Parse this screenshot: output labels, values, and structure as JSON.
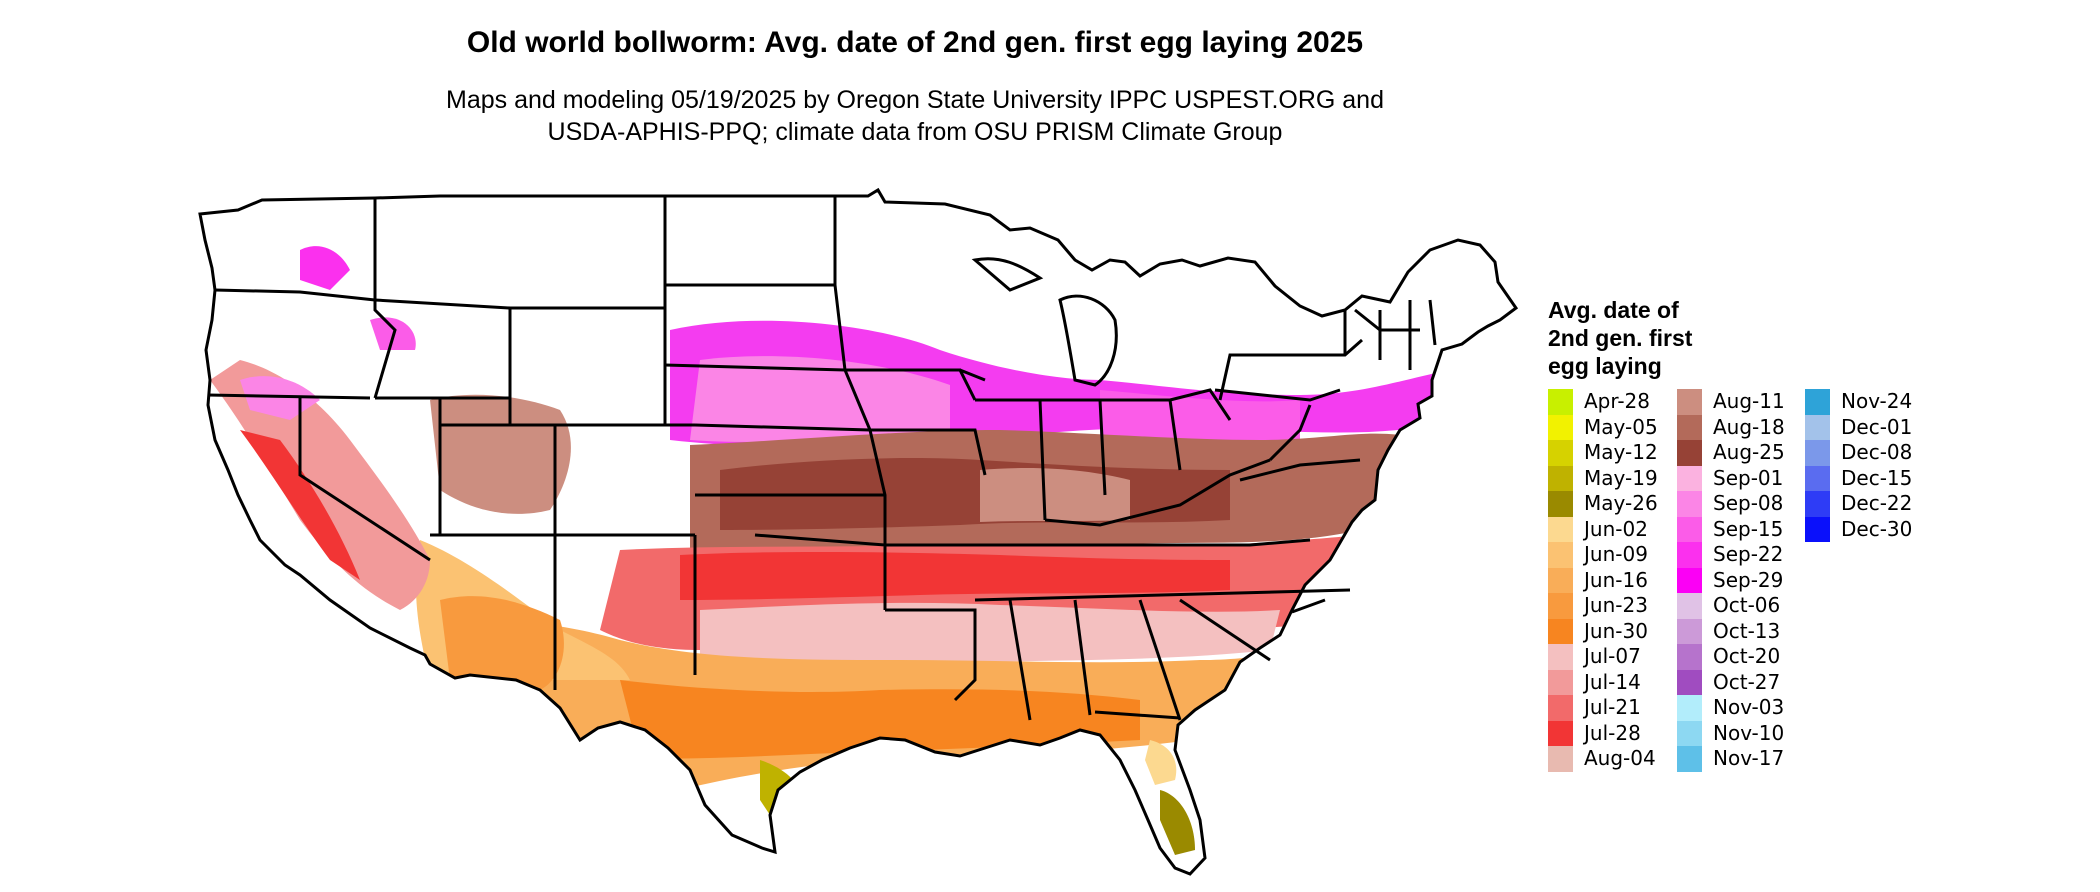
{
  "title": "Old world bollworm: Avg. date of 2nd gen. first egg laying 2025",
  "subtitle": {
    "line1": "Maps and modeling 05/19/2025 by Oregon State University IPPC USPEST.ORG and",
    "line2": "USDA-APHIS-PPQ; climate data from OSU PRISM Climate Group"
  },
  "legend": {
    "title_lines": [
      "Avg. date of",
      "2nd gen. first",
      "egg laying"
    ],
    "columns": [
      [
        {
          "label": "Apr-28",
          "color": "#c8f000"
        },
        {
          "label": "May-05",
          "color": "#f2f200"
        },
        {
          "label": "May-12",
          "color": "#d6d200"
        },
        {
          "label": "May-19",
          "color": "#bfb200"
        },
        {
          "label": "May-26",
          "color": "#9a8a00"
        },
        {
          "label": "Jun-02",
          "color": "#fcd990"
        },
        {
          "label": "Jun-09",
          "color": "#fbc272"
        },
        {
          "label": "Jun-16",
          "color": "#f9ad58"
        },
        {
          "label": "Jun-23",
          "color": "#f89a3e"
        },
        {
          "label": "Jun-30",
          "color": "#f78520"
        },
        {
          "label": "Jul-07",
          "color": "#f4c0c0"
        },
        {
          "label": "Jul-14",
          "color": "#f29a9a"
        },
        {
          "label": "Jul-21",
          "color": "#f26a6a"
        },
        {
          "label": "Jul-28",
          "color": "#f23535"
        },
        {
          "label": "Aug-04",
          "color": "#e8bab0"
        }
      ],
      [
        {
          "label": "Aug-11",
          "color": "#cc8e80"
        },
        {
          "label": "Aug-18",
          "color": "#b36a5a"
        },
        {
          "label": "Aug-25",
          "color": "#964236"
        },
        {
          "label": "Sep-01",
          "color": "#fbb2e0"
        },
        {
          "label": "Sep-08",
          "color": "#fb85e6"
        },
        {
          "label": "Sep-15",
          "color": "#fb5ce8"
        },
        {
          "label": "Sep-22",
          "color": "#fb30ee"
        },
        {
          "label": "Sep-29",
          "color": "#fb00f5"
        },
        {
          "label": "Oct-06",
          "color": "#e0c2e6"
        },
        {
          "label": "Oct-13",
          "color": "#cc9ad8"
        },
        {
          "label": "Oct-20",
          "color": "#b673cc"
        },
        {
          "label": "Oct-27",
          "color": "#a04cc0"
        },
        {
          "label": "Nov-03",
          "color": "#b2edfb"
        },
        {
          "label": "Nov-10",
          "color": "#8dd8f2"
        },
        {
          "label": "Nov-17",
          "color": "#5ec0e8"
        }
      ],
      [
        {
          "label": "Nov-24",
          "color": "#2ea3d8"
        },
        {
          "label": "Dec-01",
          "color": "#a3c2ea"
        },
        {
          "label": "Dec-08",
          "color": "#7b98ea"
        },
        {
          "label": "Dec-15",
          "color": "#5a6cf0"
        },
        {
          "label": "Dec-22",
          "color": "#2e3cf6"
        },
        {
          "label": "Dec-30",
          "color": "#0a10fb"
        }
      ]
    ]
  }
}
